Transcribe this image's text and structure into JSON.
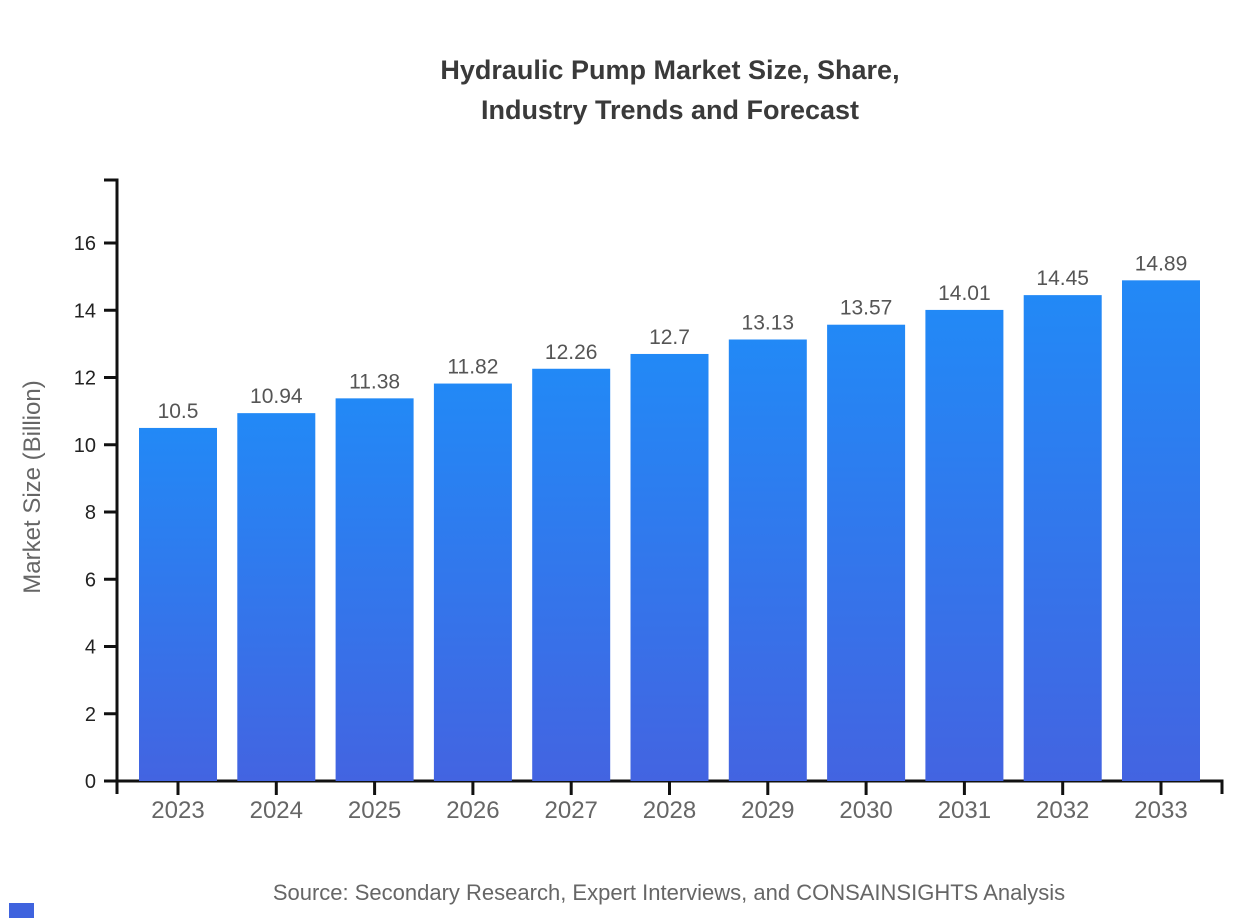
{
  "title": {
    "line1": "Hydraulic Pump Market Size, Share,",
    "line2": "Industry Trends and Forecast"
  },
  "source": "Source: Secondary Research, Expert Interviews, and CONSAINSIGHTS Analysis",
  "chart_data": {
    "type": "bar",
    "title": "Hydraulic Pump Market Size, Share, Industry Trends and Forecast",
    "categories": [
      "2023",
      "2024",
      "2025",
      "2026",
      "2027",
      "2028",
      "2029",
      "2030",
      "2031",
      "2032",
      "2033"
    ],
    "values": [
      10.5,
      10.94,
      11.38,
      11.82,
      12.26,
      12.7,
      13.13,
      13.57,
      14.01,
      14.45,
      14.89
    ],
    "value_labels": [
      "10.5",
      "10.94",
      "11.38",
      "11.82",
      "12.26",
      "12.7",
      "13.13",
      "13.57",
      "14.01",
      "14.45",
      "14.89"
    ],
    "xlabel": "",
    "ylabel": "Market Size (Billion)",
    "ylim": [
      0,
      16
    ],
    "yticks": [
      0,
      2,
      4,
      6,
      8,
      10,
      12,
      14,
      16
    ],
    "grid": false,
    "legend": false,
    "colors": {
      "bar_gradient_top": "#2289f6",
      "bar_gradient_bottom": "#4364e1",
      "axis": "#111111",
      "y_tick_label": "#222222",
      "x_tick_label": "#666666",
      "value_label": "#555555",
      "title": "#3a3a3a",
      "y_axis_title": "#666666",
      "source": "#666666",
      "brand_mark": "#3f63de"
    }
  }
}
